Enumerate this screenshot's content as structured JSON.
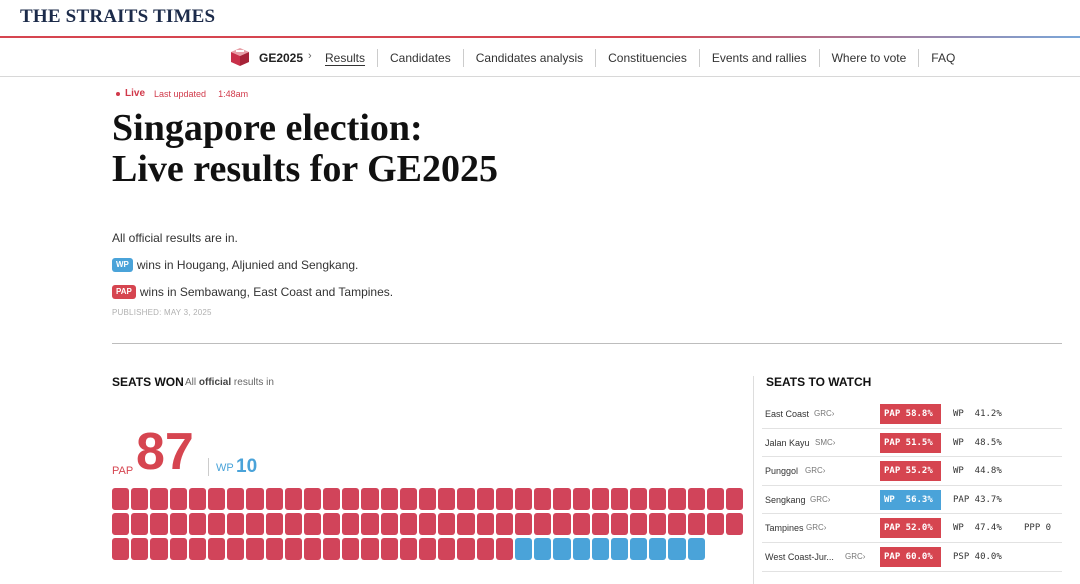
{
  "masthead": {
    "logo": "THE STRAITS TIMES"
  },
  "nav": {
    "brand": "GE2025",
    "chevron": "›",
    "items": [
      {
        "label": "Results",
        "active": true
      },
      {
        "label": "Candidates"
      },
      {
        "label": "Candidates analysis"
      },
      {
        "label": "Constituencies"
      },
      {
        "label": "Events and rallies"
      },
      {
        "label": "Where to vote"
      },
      {
        "label": "FAQ"
      }
    ]
  },
  "live": {
    "label": "Live",
    "updated_label": "Last updated",
    "time": "1:48am"
  },
  "headline": {
    "line1": "Singapore election:",
    "line2": "Live results for GE2025"
  },
  "summary": {
    "line1": "All official results are in.",
    "wp_badge": "WP",
    "line2": "wins in Hougang, Aljunied and Sengkang.",
    "pap_badge": "PAP",
    "line3": "wins in Sembawang, East Coast and Tampines."
  },
  "published": "PUBLISHED: MAY 3, 2025",
  "seats_won": {
    "title": "SEATS WON",
    "note_prefix": "All",
    "note_bold": "official",
    "note_suffix": "results in",
    "pap_label": "PAP",
    "pap_count": "87",
    "wp_label": "WP",
    "wp_count": "10",
    "pap_seats": 87,
    "wp_seats": 10,
    "colors": {
      "pap": "#d1445a",
      "wp": "#4aa3d9"
    }
  },
  "seats_to_watch": {
    "title": "SEATS TO WATCH",
    "rows": [
      {
        "name": "East Coast",
        "type": "GRC›",
        "winner": "pap",
        "win_text": "PAP 58.8%",
        "runner": "WP  41.2%",
        "third": ""
      },
      {
        "name": "Jalan Kayu",
        "type": "SMC›",
        "winner": "pap",
        "win_text": "PAP 51.5%",
        "runner": "WP  48.5%",
        "third": ""
      },
      {
        "name": "Punggol",
        "type": "GRC›",
        "winner": "pap",
        "win_text": "PAP 55.2%",
        "runner": "WP  44.8%",
        "third": ""
      },
      {
        "name": "Sengkang",
        "type": "GRC›",
        "winner": "wp",
        "win_text": "WP  56.3%",
        "runner": "PAP 43.7%",
        "third": ""
      },
      {
        "name": "Tampines",
        "type": "GRC›",
        "winner": "pap",
        "win_text": "PAP 52.0%",
        "runner": "WP  47.4%",
        "third": "PPP 0"
      },
      {
        "name": "West Coast-Jur...",
        "type": "GRC›",
        "winner": "pap",
        "win_text": "PAP 60.0%",
        "runner": "PSP 40.0%",
        "third": ""
      }
    ]
  }
}
